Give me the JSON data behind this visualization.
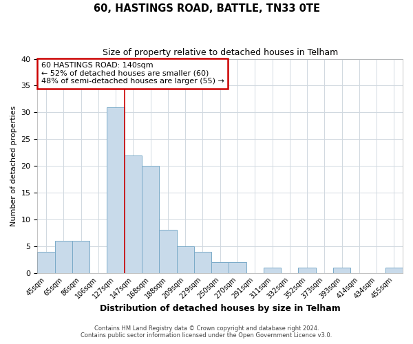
{
  "title": "60, HASTINGS ROAD, BATTLE, TN33 0TE",
  "subtitle": "Size of property relative to detached houses in Telham",
  "xlabel": "Distribution of detached houses by size in Telham",
  "ylabel": "Number of detached properties",
  "bar_color": "#c8daea",
  "bar_edge_color": "#7aaac8",
  "categories": [
    "45sqm",
    "65sqm",
    "86sqm",
    "106sqm",
    "127sqm",
    "147sqm",
    "168sqm",
    "188sqm",
    "209sqm",
    "229sqm",
    "250sqm",
    "270sqm",
    "291sqm",
    "311sqm",
    "332sqm",
    "352sqm",
    "373sqm",
    "393sqm",
    "414sqm",
    "434sqm",
    "455sqm"
  ],
  "values": [
    4,
    6,
    6,
    0,
    31,
    22,
    20,
    8,
    5,
    4,
    2,
    2,
    0,
    1,
    0,
    1,
    0,
    1,
    0,
    0,
    1
  ],
  "ylim": [
    0,
    40
  ],
  "yticks": [
    0,
    5,
    10,
    15,
    20,
    25,
    30,
    35,
    40
  ],
  "vline_index": 5,
  "vline_color": "#cc0000",
  "annotation_line1": "60 HASTINGS ROAD: 140sqm",
  "annotation_line2": "← 52% of detached houses are smaller (60)",
  "annotation_line3": "48% of semi-detached houses are larger (55) →",
  "footer1": "Contains HM Land Registry data © Crown copyright and database right 2024.",
  "footer2": "Contains public sector information licensed under the Open Government Licence v3.0.",
  "plot_background": "#ffffff",
  "grid_color": "#d0d8e0"
}
